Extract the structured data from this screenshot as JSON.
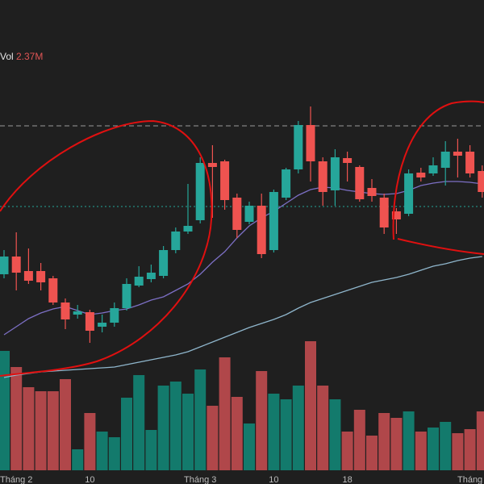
{
  "chart_data": {
    "type": "candlestick",
    "legend": {
      "label": "Vol",
      "value": "2.37M"
    },
    "categories": [
      null,
      "Tháng 2",
      null,
      null,
      null,
      null,
      null,
      "10",
      null,
      null,
      null,
      null,
      null,
      null,
      null,
      null,
      "Tháng 3",
      null,
      null,
      null,
      null,
      null,
      "10",
      null,
      null,
      null,
      null,
      null,
      "18",
      null,
      null,
      null,
      null,
      null,
      null,
      null,
      null,
      null,
      "Tháng",
      null
    ],
    "open": [
      260,
      282,
      264,
      264,
      255,
      225,
      210,
      213,
      195,
      200,
      218,
      246,
      254,
      258,
      290,
      313,
      327,
      398,
      400,
      355,
      325,
      345,
      290,
      355,
      390,
      445,
      400,
      364,
      404,
      393,
      367,
      355,
      338,
      335,
      386,
      385,
      392,
      412,
      412,
      388
    ],
    "high": [
      290,
      312,
      292,
      274,
      258,
      230,
      222,
      216,
      210,
      225,
      255,
      270,
      272,
      295,
      318,
      372,
      405,
      420,
      402,
      360,
      350,
      360,
      365,
      392,
      450,
      468,
      405,
      415,
      412,
      395,
      378,
      360,
      342,
      390,
      392,
      405,
      425,
      428,
      420,
      395
    ],
    "low": [
      255,
      240,
      248,
      240,
      222,
      192,
      205,
      175,
      188,
      195,
      215,
      244,
      250,
      255,
      286,
      310,
      323,
      330,
      340,
      305,
      322,
      280,
      287,
      352,
      385,
      375,
      345,
      345,
      375,
      350,
      350,
      310,
      310,
      332,
      375,
      382,
      370,
      380,
      380,
      355
    ],
    "close": [
      282,
      262,
      252,
      250,
      225,
      204,
      214,
      190,
      200,
      218,
      248,
      257,
      262,
      290,
      313,
      320,
      398,
      393,
      352,
      315,
      345,
      285,
      362,
      390,
      445,
      400,
      362,
      405,
      398,
      353,
      357,
      318,
      328,
      385,
      380,
      395,
      412,
      407,
      385,
      362
    ],
    "volume": [
      148,
      128,
      103,
      98,
      98,
      113,
      26,
      71,
      48,
      41,
      90,
      118,
      50,
      105,
      110,
      95,
      125,
      80,
      140,
      91,
      58,
      123,
      95,
      88,
      105,
      160,
      105,
      88,
      48,
      75,
      43,
      71,
      65,
      73,
      48,
      53,
      60,
      46,
      51,
      73
    ],
    "series": [
      {
        "color": "#7c6fc4",
        "values": [
          185,
          195,
          205,
          212,
          217,
          220,
          215,
          210,
          212,
          215,
          217,
          222,
          228,
          232,
          240,
          248,
          260,
          275,
          288,
          305,
          320,
          330,
          338,
          348,
          358,
          365,
          368,
          367,
          364,
          362,
          360,
          359,
          360,
          364,
          370,
          373,
          375,
          375,
          374,
          372
        ]
      },
      {
        "color": "#8fb6cc",
        "values": [
          132,
          135,
          137,
          139,
          140,
          141,
          142,
          143,
          144,
          145,
          148,
          151,
          154,
          157,
          160,
          164,
          170,
          176,
          182,
          188,
          194,
          199,
          204,
          210,
          218,
          225,
          230,
          235,
          240,
          245,
          250,
          253,
          256,
          260,
          265,
          270,
          273,
          277,
          280,
          282
        ]
      }
    ],
    "price_lines": [
      {
        "value": 444,
        "color": "#9a9a9a",
        "style": "dashed"
      },
      {
        "value": 344,
        "color": "#26a69a",
        "style": "dotted"
      }
    ],
    "ylim": [
      0,
      600
    ],
    "volume_ylim": [
      0,
      600
    ],
    "up_color": "#26a69a",
    "down_color": "#ef5350",
    "up_volume_color": "#137a6c",
    "down_volume_color": "#b0474a"
  }
}
